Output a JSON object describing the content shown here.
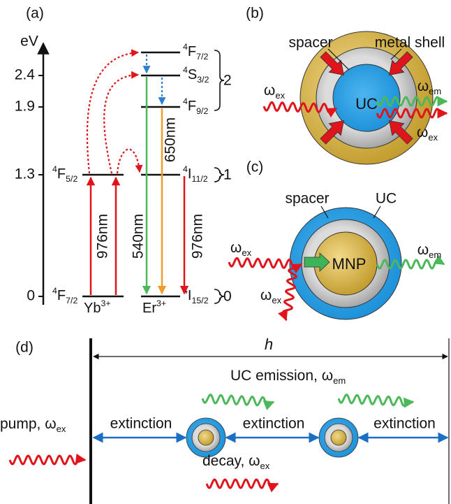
{
  "panel_labels": [
    "(a)",
    "(b)",
    "(c)",
    "(d)"
  ],
  "a": {
    "axis_label": "eV",
    "ticks": [
      "2.4",
      "1.9",
      "1.3",
      "0"
    ],
    "yb_levels": [
      {
        "sup": "4",
        "main": "F",
        "sub": "5/2"
      },
      {
        "sup": "4",
        "main": "F",
        "sub": "7/2"
      }
    ],
    "yb_ion": {
      "main": "Yb",
      "sup": "3+"
    },
    "er_levels": [
      {
        "sup": "4",
        "main": "F",
        "sub": "7/2"
      },
      {
        "sup": "4",
        "main": "S",
        "sub": "3/2"
      },
      {
        "sup": "4",
        "main": "F",
        "sub": "9/2"
      },
      {
        "sup": "4",
        "main": "I",
        "sub": "11/2"
      },
      {
        "sup": "4",
        "main": "I",
        "sub": "15/2"
      }
    ],
    "er_ion": {
      "main": "Er",
      "sup": "3+"
    },
    "groups": [
      "2",
      "1",
      "0"
    ],
    "transitions": [
      "976nm",
      "976nm",
      "540nm",
      "650nm"
    ]
  },
  "b": {
    "spacer": "spacer",
    "shell": "metal shell",
    "core": "UC",
    "w_in": {
      "main": "ω",
      "sub": "ex"
    },
    "w_em": {
      "main": "ω",
      "sub": "em"
    },
    "w_out": {
      "main": "ω",
      "sub": "ex"
    }
  },
  "c": {
    "spacer": "spacer",
    "shell": "UC",
    "core": "MNP",
    "w_in": {
      "main": "ω",
      "sub": "ex"
    },
    "w_em": {
      "main": "ω",
      "sub": "em"
    },
    "w_decay": {
      "main": "ω",
      "sub": "ex"
    }
  },
  "d": {
    "height": "h",
    "pump": {
      "main": "pump, ω",
      "sub": "ex"
    },
    "emission": {
      "main": "UC emission, ω",
      "sub": "em"
    },
    "decay": {
      "main": "decay, ω",
      "sub": "ex"
    },
    "extinction": [
      "extinction",
      "extinction",
      "extinction"
    ]
  }
}
